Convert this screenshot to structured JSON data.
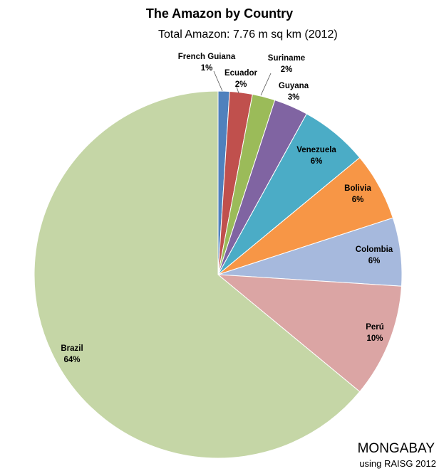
{
  "chart_data": {
    "type": "pie",
    "title": "The Amazon by Country",
    "subtitle": "Total Amazon: 7.76 m sq km (2012)",
    "start_angle_deg": 0,
    "direction": "clockwise",
    "slices": [
      {
        "label": "French Guiana",
        "value": 1,
        "value_text": "1%",
        "color": "#4f81bd"
      },
      {
        "label": "Ecuador",
        "value": 2,
        "value_text": "2%",
        "color": "#c0504d"
      },
      {
        "label": "Suriname",
        "value": 2,
        "value_text": "2%",
        "color": "#9bbb59"
      },
      {
        "label": "Guyana",
        "value": 3,
        "value_text": "3%",
        "color": "#8064a2"
      },
      {
        "label": "Venezuela",
        "value": 6,
        "value_text": "6%",
        "color": "#4bacc6"
      },
      {
        "label": "Bolivia",
        "value": 6,
        "value_text": "6%",
        "color": "#f79646"
      },
      {
        "label": "Colombia",
        "value": 6,
        "value_text": "6%",
        "color": "#a6b9dd"
      },
      {
        "label": "Perú",
        "value": 10,
        "value_text": "10%",
        "color": "#dba5a4"
      },
      {
        "label": "Brazil",
        "value": 64,
        "value_text": "64%",
        "color": "#c5d6a6"
      }
    ]
  },
  "credit": {
    "brand": "MONGABAY",
    "source": "using RAISG 2012"
  }
}
